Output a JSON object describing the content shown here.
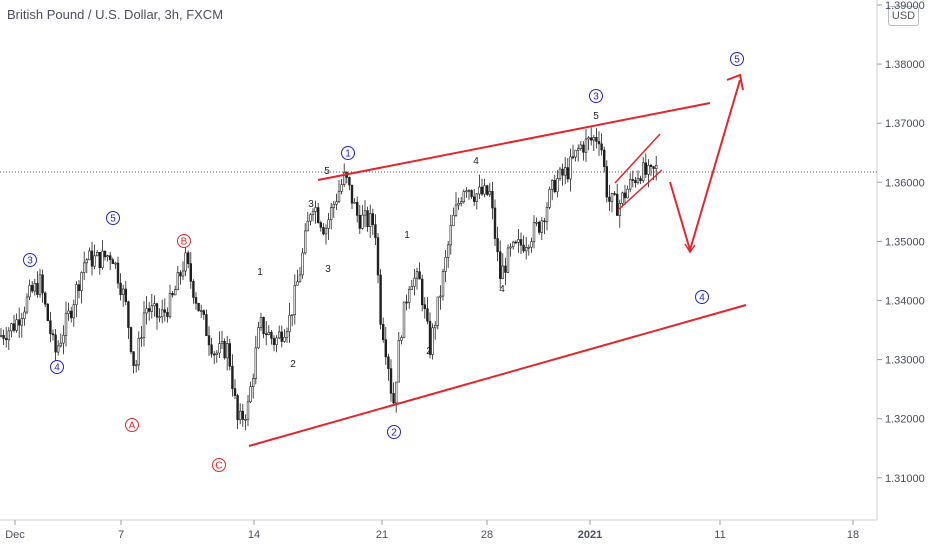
{
  "header": {
    "title": "British Pound / U.S. Dollar, 3h, FXCM",
    "currency_badge": "USD"
  },
  "colors": {
    "candle": "#1f1f1f",
    "trendline": "#e3262a",
    "blue_label": "#2424c8",
    "red_label": "#e3262a",
    "price_line": "#444444"
  },
  "chart_data": {
    "type": "candlestick",
    "instrument": "British Pound / U.S. Dollar",
    "timeframe": "3h",
    "source": "FXCM",
    "ylim": [
      1.305,
      1.392
    ],
    "y_ticks": [
      "1.39000",
      "1.38000",
      "1.37000",
      "1.36000",
      "1.35000",
      "1.34000",
      "1.33000",
      "1.32000",
      "1.31000"
    ],
    "y_tick_values": [
      1.39,
      1.38,
      1.37,
      1.36,
      1.35,
      1.34,
      1.33,
      1.32,
      1.31
    ],
    "x_ticks": [
      "Dec",
      "7",
      "14",
      "21",
      "28",
      "2021",
      "11",
      "18"
    ],
    "current_price_line": 1.3617,
    "approx_closes": [
      {
        "date": "Dec 1",
        "close": 1.334
      },
      {
        "date": "Dec 2",
        "close": 1.344
      },
      {
        "date": "Dec 3",
        "close": 1.331
      },
      {
        "date": "Dec 4",
        "close": 1.345
      },
      {
        "date": "Dec 7",
        "close": 1.329
      },
      {
        "date": "Dec 8",
        "close": 1.337
      },
      {
        "date": "Dec 9",
        "close": 1.345
      },
      {
        "date": "Dec 10",
        "close": 1.334
      },
      {
        "date": "Dec 11",
        "close": 1.322
      },
      {
        "date": "Dec 14",
        "close": 1.333
      },
      {
        "date": "Dec 15",
        "close": 1.341
      },
      {
        "date": "Dec 16",
        "close": 1.355
      },
      {
        "date": "Dec 17",
        "close": 1.358
      },
      {
        "date": "Dec 18",
        "close": 1.354
      },
      {
        "date": "Dec 21",
        "close": 1.338
      },
      {
        "date": "Dec 22",
        "close": 1.341
      },
      {
        "date": "Dec 23",
        "close": 1.345
      },
      {
        "date": "Dec 24",
        "close": 1.355
      },
      {
        "date": "Dec 28",
        "close": 1.351
      },
      {
        "date": "Dec 29",
        "close": 1.353
      },
      {
        "date": "Dec 30",
        "close": 1.362
      },
      {
        "date": "Dec 31",
        "close": 1.367
      },
      {
        "date": "Jan 4",
        "close": 1.357
      },
      {
        "date": "Jan 5",
        "close": 1.362
      }
    ],
    "wave_labels": {
      "blue_circled": [
        "3",
        "4",
        "5",
        "1",
        "2",
        "3",
        "4",
        "5"
      ],
      "red_circled": [
        "B",
        "A",
        "C"
      ],
      "plain": [
        "1",
        "2",
        "3",
        "4",
        "5",
        "1",
        "2",
        "3",
        "4",
        "5"
      ]
    },
    "annotations": [
      "rising channel",
      "ending diagonal",
      "projected path to wave 4 then wave 5"
    ]
  }
}
